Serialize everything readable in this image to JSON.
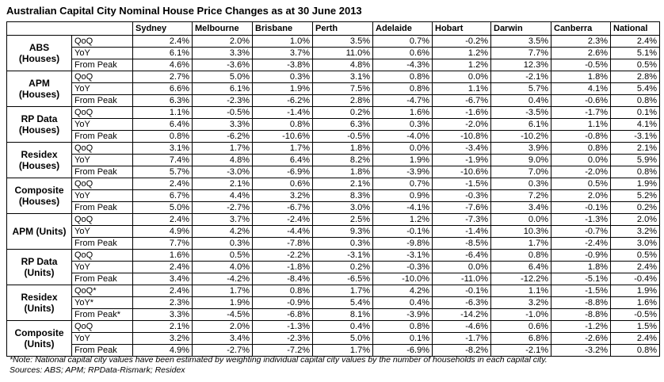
{
  "title": "Australian Capital City Nominal House Price Changes as at 30 June 2013",
  "table": {
    "columns": [
      "Sydney",
      "Melbourne",
      "Brisbane",
      "Perth",
      "Adelaide",
      "Hobart",
      "Darwin",
      "Canberra",
      "National"
    ],
    "groups": [
      {
        "label": [
          "ABS",
          "(Houses)"
        ],
        "rows": [
          {
            "metric": "QoQ",
            "values": [
              "2.4%",
              "2.0%",
              "1.0%",
              "3.5%",
              "0.7%",
              "-0.2%",
              "3.5%",
              "2.3%",
              "2.4%"
            ]
          },
          {
            "metric": "YoY",
            "values": [
              "6.1%",
              "3.3%",
              "3.7%",
              "11.0%",
              "0.6%",
              "1.2%",
              "7.7%",
              "2.6%",
              "5.1%"
            ]
          },
          {
            "metric": "From Peak",
            "values": [
              "4.6%",
              "-3.6%",
              "-3.8%",
              "4.8%",
              "-4.3%",
              "1.2%",
              "12.3%",
              "-0.5%",
              "0.5%"
            ]
          }
        ]
      },
      {
        "label": [
          "APM",
          "(Houses)"
        ],
        "rows": [
          {
            "metric": "QoQ",
            "values": [
              "2.7%",
              "5.0%",
              "0.3%",
              "3.1%",
              "0.8%",
              "0.0%",
              "-2.1%",
              "1.8%",
              "2.8%"
            ]
          },
          {
            "metric": "YoY",
            "values": [
              "6.6%",
              "6.1%",
              "1.9%",
              "7.5%",
              "0.8%",
              "1.1%",
              "5.7%",
              "4.1%",
              "5.4%"
            ]
          },
          {
            "metric": "From Peak",
            "values": [
              "6.3%",
              "-2.3%",
              "-6.2%",
              "2.8%",
              "-4.7%",
              "-6.7%",
              "0.4%",
              "-0.6%",
              "0.8%"
            ]
          }
        ]
      },
      {
        "label": [
          "RP Data",
          "(Houses)"
        ],
        "rows": [
          {
            "metric": "QoQ",
            "values": [
              "1.1%",
              "-0.5%",
              "-1.4%",
              "0.2%",
              "1.6%",
              "-1.6%",
              "-3.5%",
              "-1.7%",
              "0.1%"
            ]
          },
          {
            "metric": "YoY",
            "values": [
              "6.4%",
              "3.3%",
              "0.8%",
              "6.3%",
              "0.3%",
              "-2.0%",
              "6.1%",
              "1.1%",
              "4.1%"
            ]
          },
          {
            "metric": "From Peak",
            "values": [
              "0.8%",
              "-6.2%",
              "-10.6%",
              "-0.5%",
              "-4.0%",
              "-10.8%",
              "-10.2%",
              "-0.8%",
              "-3.1%"
            ]
          }
        ]
      },
      {
        "label": [
          "Residex",
          "(Houses)"
        ],
        "rows": [
          {
            "metric": "QoQ",
            "values": [
              "3.1%",
              "1.7%",
              "1.7%",
              "1.8%",
              "0.0%",
              "-3.4%",
              "3.9%",
              "0.8%",
              "2.1%"
            ]
          },
          {
            "metric": "YoY",
            "values": [
              "7.4%",
              "4.8%",
              "6.4%",
              "8.2%",
              "1.9%",
              "-1.9%",
              "9.0%",
              "0.0%",
              "5.9%"
            ]
          },
          {
            "metric": "From Peak",
            "values": [
              "5.7%",
              "-3.0%",
              "-6.9%",
              "1.8%",
              "-3.9%",
              "-10.6%",
              "7.0%",
              "-2.0%",
              "0.8%"
            ]
          }
        ]
      },
      {
        "label": [
          "Composite",
          "(Houses)"
        ],
        "rows": [
          {
            "metric": "QoQ",
            "values": [
              "2.4%",
              "2.1%",
              "0.6%",
              "2.1%",
              "0.7%",
              "-1.5%",
              "0.3%",
              "0.5%",
              "1.9%"
            ]
          },
          {
            "metric": "YoY",
            "values": [
              "6.7%",
              "4.4%",
              "3.2%",
              "8.3%",
              "0.9%",
              "-0.3%",
              "7.2%",
              "2.0%",
              "5.2%"
            ]
          },
          {
            "metric": "From Peak",
            "values": [
              "5.0%",
              "-2.7%",
              "-6.7%",
              "3.0%",
              "-4.1%",
              "-7.6%",
              "3.4%",
              "-0.1%",
              "0.2%"
            ]
          }
        ]
      },
      {
        "label": [
          "APM (Units)"
        ],
        "rows": [
          {
            "metric": "QoQ",
            "values": [
              "2.4%",
              "3.7%",
              "-2.4%",
              "2.5%",
              "1.2%",
              "-7.3%",
              "0.0%",
              "-1.3%",
              "2.0%"
            ]
          },
          {
            "metric": "YoY",
            "values": [
              "4.9%",
              "4.2%",
              "-4.4%",
              "9.3%",
              "-0.1%",
              "-1.4%",
              "10.3%",
              "-0.7%",
              "3.2%"
            ]
          },
          {
            "metric": "From Peak",
            "values": [
              "7.7%",
              "0.3%",
              "-7.8%",
              "0.3%",
              "-9.8%",
              "-8.5%",
              "1.7%",
              "-2.4%",
              "3.0%"
            ]
          }
        ]
      },
      {
        "label": [
          "RP Data",
          "(Units)"
        ],
        "rows": [
          {
            "metric": "QoQ",
            "values": [
              "1.6%",
              "0.5%",
              "-2.2%",
              "-3.1%",
              "-3.1%",
              "-6.4%",
              "0.8%",
              "-0.9%",
              "0.5%"
            ]
          },
          {
            "metric": "YoY",
            "values": [
              "2.4%",
              "4.0%",
              "-1.8%",
              "0.2%",
              "-0.3%",
              "0.0%",
              "6.4%",
              "1.8%",
              "2.4%"
            ]
          },
          {
            "metric": "From Peak",
            "values": [
              "3.4%",
              "-4.2%",
              "-8.4%",
              "-6.5%",
              "-10.0%",
              "-11.0%",
              "-12.2%",
              "-5.1%",
              "-0.4%"
            ]
          }
        ]
      },
      {
        "label": [
          "Residex",
          "(Units)"
        ],
        "rows": [
          {
            "metric": "QoQ*",
            "values": [
              "2.4%",
              "1.7%",
              "0.8%",
              "1.7%",
              "4.2%",
              "-0.1%",
              "1.1%",
              "-1.5%",
              "1.9%"
            ]
          },
          {
            "metric": "YoY*",
            "values": [
              "2.3%",
              "1.9%",
              "-0.9%",
              "5.4%",
              "0.4%",
              "-6.3%",
              "3.2%",
              "-8.8%",
              "1.6%"
            ]
          },
          {
            "metric": "From Peak*",
            "values": [
              "3.3%",
              "-4.5%",
              "-6.8%",
              "8.1%",
              "-3.9%",
              "-14.2%",
              "-1.0%",
              "-8.8%",
              "-0.5%"
            ]
          }
        ]
      },
      {
        "label": [
          "Composite",
          "(Units)"
        ],
        "rows": [
          {
            "metric": "QoQ",
            "values": [
              "2.1%",
              "2.0%",
              "-1.3%",
              "0.4%",
              "0.8%",
              "-4.6%",
              "0.6%",
              "-1.2%",
              "1.5%"
            ]
          },
          {
            "metric": "YoY",
            "values": [
              "3.2%",
              "3.4%",
              "-2.3%",
              "5.0%",
              "0.1%",
              "-1.7%",
              "6.8%",
              "-2.6%",
              "2.4%"
            ]
          },
          {
            "metric": "From Peak",
            "values": [
              "4.9%",
              "-2.7%",
              "-7.2%",
              "1.7%",
              "-6.9%",
              "-8.2%",
              "-2.1%",
              "-3.2%",
              "0.8%"
            ]
          }
        ]
      }
    ]
  },
  "notes": [
    "*Note: National capital city values have been estimated by weighting individual capital city values by the number of households in each capital city.",
    "Sources: ABS; APM; RPData-Rismark; Residex"
  ]
}
